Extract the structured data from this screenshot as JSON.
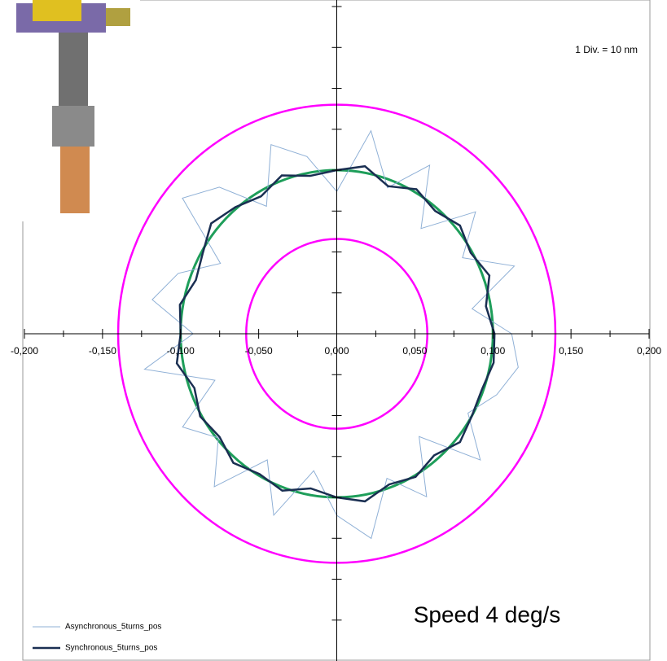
{
  "chart_data": {
    "type": "polar",
    "annotation": "1 Div. = 10 nm",
    "caption": "Speed 4 deg/s",
    "xlim": [
      -0.2,
      0.2
    ],
    "ylim": [
      -0.2,
      0.204
    ],
    "xticks": [
      {
        "value": -0.2,
        "label": "-0,200"
      },
      {
        "value": -0.15,
        "label": "-0,150"
      },
      {
        "value": -0.1,
        "label": "-0,100"
      },
      {
        "value": -0.05,
        "label": "-0,050"
      },
      {
        "value": 0,
        "label": "0,000"
      },
      {
        "value": 0.05,
        "label": "0,050"
      },
      {
        "value": 0.1,
        "label": "0,100"
      },
      {
        "value": 0.15,
        "label": "0,150"
      },
      {
        "value": 0.2,
        "label": "0,200"
      }
    ],
    "xminorticks": [
      -0.175,
      -0.125,
      -0.075,
      -0.025,
      0.025,
      0.075,
      0.125,
      0.175
    ],
    "yticks": [
      -0.175,
      -0.15,
      -0.125,
      -0.1,
      -0.075,
      -0.05,
      -0.025,
      0.025,
      0.05,
      0.075,
      0.1,
      0.125,
      0.15,
      0.175,
      0.2
    ],
    "circles": [
      {
        "radius": 0.14,
        "color": "#ff00ff"
      },
      {
        "radius": 0.058,
        "color": "#ff00ff"
      },
      {
        "radius": 0.1,
        "color": "#1e9e5a"
      }
    ],
    "theta": [
      0,
      10,
      20,
      30,
      40,
      50,
      60,
      70,
      80,
      90,
      100,
      110,
      120,
      130,
      140,
      150,
      160,
      170,
      180,
      190,
      200,
      210,
      220,
      230,
      240,
      250,
      260,
      270,
      280,
      290,
      300,
      310,
      320,
      330,
      340,
      350
    ],
    "series": [
      {
        "name": "Asynchronous_5turns_pos",
        "color": "#8fb0d6",
        "values": [
          0.112,
          0.088,
          0.121,
          0.093,
          0.116,
          0.084,
          0.119,
          0.095,
          0.126,
          0.087,
          0.11,
          0.123,
          0.09,
          0.117,
          0.129,
          0.086,
          0.108,
          0.12,
          0.092,
          0.125,
          0.083,
          0.114,
          0.099,
          0.122,
          0.089,
          0.118,
          0.085,
          0.111,
          0.127,
          0.094,
          0.115,
          0.082,
          0.12,
          0.097,
          0.109,
          0.118
        ]
      },
      {
        "name": "Synchronous_5turns_pos",
        "color": "#1a2f52",
        "values": [
          0.101,
          0.097,
          0.104,
          0.099,
          0.103,
          0.098,
          0.102,
          0.096,
          0.104,
          0.1,
          0.098,
          0.103,
          0.097,
          0.101,
          0.105,
          0.099,
          0.096,
          0.102,
          0.1,
          0.104,
          0.097,
          0.101,
          0.098,
          0.103,
          0.099,
          0.102,
          0.096,
          0.1,
          0.104,
          0.098,
          0.101,
          0.097,
          0.103,
          0.1,
          0.099,
          0.102
        ]
      }
    ]
  }
}
